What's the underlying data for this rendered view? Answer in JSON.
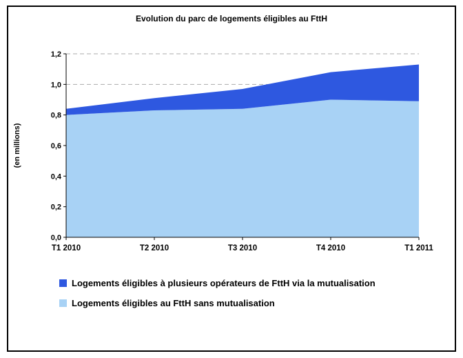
{
  "chart_data": {
    "type": "area",
    "stacked": true,
    "title": "Evolution du parc de logements éligibles au FttH",
    "categories": [
      "T1 2010",
      "T2 2010",
      "T3 2010",
      "T4 2010",
      "T1 2011"
    ],
    "series": [
      {
        "name": "Logements éligibles au FttH sans mutualisation",
        "color": "#A8D2F5",
        "values": [
          0.8,
          0.83,
          0.84,
          0.9,
          0.89
        ]
      },
      {
        "name": "Logements éligibles à plusieurs opérateurs de FttH via la mutualisation",
        "color": "#2E58E0",
        "values": [
          0.04,
          0.08,
          0.13,
          0.18,
          0.24
        ]
      }
    ],
    "stacked_totals": [
      0.84,
      0.91,
      0.97,
      1.08,
      1.13
    ],
    "xlabel": "",
    "ylabel": "(en millions)",
    "ylim": [
      0,
      1.2
    ],
    "ytick_labels": [
      "0,0",
      "0,2",
      "0,4",
      "0,6",
      "0,8",
      "1,0",
      "1,2"
    ],
    "grid": "dashed-horizontal",
    "grid_color": "#ABABAB",
    "legend_position": "bottom"
  },
  "legend": {
    "items": [
      {
        "label": "Logements éligibles à plusieurs opérateurs de FttH via la mutualisation",
        "color": "#2E58E0"
      },
      {
        "label": "Logements éligibles au FttH sans mutualisation",
        "color": "#A8D2F5"
      }
    ]
  }
}
